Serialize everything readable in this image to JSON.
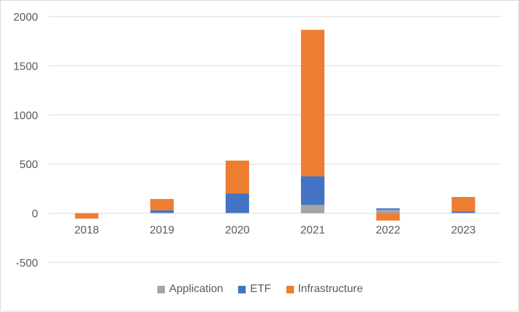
{
  "chart_data": {
    "type": "bar",
    "stacked": true,
    "categories": [
      "2018",
      "2019",
      "2020",
      "2021",
      "2022",
      "2023"
    ],
    "series": [
      {
        "name": "Application",
        "color": "#a5a5a5",
        "values": [
          0,
          5,
          5,
          85,
          35,
          5
        ]
      },
      {
        "name": "ETF",
        "color": "#4472c4",
        "values": [
          0,
          25,
          195,
          290,
          15,
          15
        ]
      },
      {
        "name": "Infrastructure",
        "color": "#ed7d31",
        "values": [
          -55,
          115,
          335,
          1490,
          -75,
          145
        ]
      }
    ],
    "yticks": [
      "-500",
      "0",
      "500",
      "1000",
      "1500",
      "2000"
    ],
    "ylim": [
      -500,
      2000
    ],
    "grid": true,
    "legend_position": "bottom"
  }
}
